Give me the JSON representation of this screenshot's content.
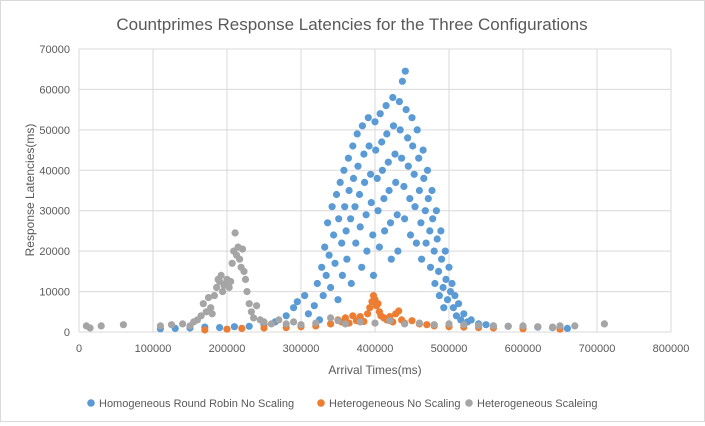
{
  "chart_data": {
    "type": "scatter",
    "title": "Countprimes Response Latencies for the Three Configurations",
    "xlabel": "Arrival Times(ms)",
    "ylabel": "Response Latencies(ms)",
    "xlim": [
      0,
      800000
    ],
    "ylim": [
      0,
      70000
    ],
    "x_ticks": [
      0,
      100000,
      200000,
      300000,
      400000,
      500000,
      600000,
      700000,
      800000
    ],
    "y_ticks": [
      0,
      10000,
      20000,
      30000,
      40000,
      50000,
      60000,
      70000
    ],
    "x_tick_labels": [
      "0",
      "100000",
      "200000",
      "300000",
      "400000",
      "500000",
      "600000",
      "700000",
      "800000"
    ],
    "y_tick_labels": [
      "0",
      "10000",
      "20000",
      "30000",
      "40000",
      "50000",
      "60000",
      "70000"
    ],
    "grid": true,
    "legend_position": "bottom",
    "series": [
      {
        "name": "Homogeneous Round Robin No Scaling",
        "color": "#5B9BD5",
        "points": [
          [
            110000,
            800
          ],
          [
            130000,
            900
          ],
          [
            150000,
            1000
          ],
          [
            170000,
            1200
          ],
          [
            190000,
            1100
          ],
          [
            210000,
            1300
          ],
          [
            230000,
            1400
          ],
          [
            250000,
            1800
          ],
          [
            265000,
            2500
          ],
          [
            280000,
            4000
          ],
          [
            290000,
            6000
          ],
          [
            295000,
            7500
          ],
          [
            305000,
            9000
          ],
          [
            310000,
            4500
          ],
          [
            318000,
            6500
          ],
          [
            322000,
            12000
          ],
          [
            325000,
            3000
          ],
          [
            328000,
            16000
          ],
          [
            330000,
            9000
          ],
          [
            332000,
            21000
          ],
          [
            334000,
            14000
          ],
          [
            336000,
            27000
          ],
          [
            338000,
            19000
          ],
          [
            340000,
            11000
          ],
          [
            342000,
            31000
          ],
          [
            344000,
            24000
          ],
          [
            346000,
            17000
          ],
          [
            348000,
            34000
          ],
          [
            350000,
            8000
          ],
          [
            351000,
            28000
          ],
          [
            353000,
            37000
          ],
          [
            355000,
            22000
          ],
          [
            356000,
            14000
          ],
          [
            358000,
            40000
          ],
          [
            359000,
            31000
          ],
          [
            361000,
            25000
          ],
          [
            362000,
            18000
          ],
          [
            364000,
            43000
          ],
          [
            365000,
            35000
          ],
          [
            367000,
            28000
          ],
          [
            368000,
            12000
          ],
          [
            370000,
            46000
          ],
          [
            371000,
            38000
          ],
          [
            373000,
            31000
          ],
          [
            374000,
            22000
          ],
          [
            376000,
            49000
          ],
          [
            377000,
            41000
          ],
          [
            379000,
            34000
          ],
          [
            380000,
            26000
          ],
          [
            382000,
            16000
          ],
          [
            383000,
            51000
          ],
          [
            385000,
            44000
          ],
          [
            386000,
            37000
          ],
          [
            388000,
            29000
          ],
          [
            389000,
            20000
          ],
          [
            391000,
            53000
          ],
          [
            392000,
            46000
          ],
          [
            394000,
            39000
          ],
          [
            395000,
            32000
          ],
          [
            397000,
            24000
          ],
          [
            398000,
            14000
          ],
          [
            400000,
            52000
          ],
          [
            401000,
            45000
          ],
          [
            403000,
            38000
          ],
          [
            404000,
            30000
          ],
          [
            406000,
            21000
          ],
          [
            407000,
            54000
          ],
          [
            409000,
            47000
          ],
          [
            410000,
            40000
          ],
          [
            412000,
            33000
          ],
          [
            413000,
            25000
          ],
          [
            415000,
            56000
          ],
          [
            416000,
            49000
          ],
          [
            418000,
            42000
          ],
          [
            419000,
            35000
          ],
          [
            421000,
            27000
          ],
          [
            422000,
            18000
          ],
          [
            424000,
            58000
          ],
          [
            425000,
            51000
          ],
          [
            427000,
            44000
          ],
          [
            428000,
            37000
          ],
          [
            430000,
            29000
          ],
          [
            431000,
            20000
          ],
          [
            433000,
            57000
          ],
          [
            434000,
            50000
          ],
          [
            436000,
            43000
          ],
          [
            437000,
            62000
          ],
          [
            439000,
            36000
          ],
          [
            440000,
            28000
          ],
          [
            441000,
            64500
          ],
          [
            442000,
            55000
          ],
          [
            444000,
            48000
          ],
          [
            445000,
            41000
          ],
          [
            447000,
            33000
          ],
          [
            448000,
            24000
          ],
          [
            450000,
            53000
          ],
          [
            451000,
            46000
          ],
          [
            453000,
            39000
          ],
          [
            454000,
            31000
          ],
          [
            456000,
            22000
          ],
          [
            457000,
            50000
          ],
          [
            459000,
            43000
          ],
          [
            460000,
            35000
          ],
          [
            462000,
            27000
          ],
          [
            463000,
            18000
          ],
          [
            465000,
            45000
          ],
          [
            466000,
            38000
          ],
          [
            468000,
            30000
          ],
          [
            469000,
            22000
          ],
          [
            471000,
            40000
          ],
          [
            472000,
            33000
          ],
          [
            474000,
            25000
          ],
          [
            475000,
            16000
          ],
          [
            477000,
            35000
          ],
          [
            478000,
            28000
          ],
          [
            480000,
            20000
          ],
          [
            481000,
            12000
          ],
          [
            483000,
            30000
          ],
          [
            484000,
            23000
          ],
          [
            486000,
            15000
          ],
          [
            487000,
            9000
          ],
          [
            489000,
            25000
          ],
          [
            490000,
            18000
          ],
          [
            492000,
            11000
          ],
          [
            493000,
            6000
          ],
          [
            495000,
            20000
          ],
          [
            496000,
            13000
          ],
          [
            498000,
            8000
          ],
          [
            500000,
            16000
          ],
          [
            502000,
            10000
          ],
          [
            504000,
            12000
          ],
          [
            506000,
            6000
          ],
          [
            508000,
            9000
          ],
          [
            510000,
            4000
          ],
          [
            513000,
            7000
          ],
          [
            516000,
            3000
          ],
          [
            520000,
            4500
          ],
          [
            525000,
            2500
          ],
          [
            530000,
            3000
          ],
          [
            540000,
            2000
          ],
          [
            550000,
            1800
          ],
          [
            560000,
            1500
          ],
          [
            580000,
            1400
          ],
          [
            600000,
            1300
          ],
          [
            620000,
            1200
          ],
          [
            640000,
            1100
          ],
          [
            650000,
            1000
          ],
          [
            660000,
            900
          ]
        ]
      },
      {
        "name": "Heterogeneous No Scaling",
        "color": "#ED7D31",
        "points": [
          [
            170000,
            500
          ],
          [
            200000,
            700
          ],
          [
            220000,
            900
          ],
          [
            250000,
            1000
          ],
          [
            280000,
            1100
          ],
          [
            300000,
            1300
          ],
          [
            320000,
            1500
          ],
          [
            340000,
            2000
          ],
          [
            350000,
            3000
          ],
          [
            355000,
            2500
          ],
          [
            360000,
            3500
          ],
          [
            365000,
            2200
          ],
          [
            370000,
            4000
          ],
          [
            375000,
            2800
          ],
          [
            380000,
            3800
          ],
          [
            385000,
            2600
          ],
          [
            390000,
            4500
          ],
          [
            393000,
            6000
          ],
          [
            396000,
            7500
          ],
          [
            398000,
            9000
          ],
          [
            400000,
            8000
          ],
          [
            402000,
            6500
          ],
          [
            404000,
            7000
          ],
          [
            406000,
            5000
          ],
          [
            408000,
            4000
          ],
          [
            412000,
            3500
          ],
          [
            416000,
            3000
          ],
          [
            420000,
            3800
          ],
          [
            424000,
            2500
          ],
          [
            428000,
            4500
          ],
          [
            432000,
            5200
          ],
          [
            436000,
            3000
          ],
          [
            440000,
            2200
          ],
          [
            450000,
            2800
          ],
          [
            460000,
            2000
          ],
          [
            470000,
            1800
          ],
          [
            480000,
            1500
          ],
          [
            500000,
            1300
          ],
          [
            520000,
            1200
          ],
          [
            540000,
            1100
          ],
          [
            560000,
            1000
          ],
          [
            600000,
            800
          ],
          [
            650000,
            700
          ]
        ]
      },
      {
        "name": "Heterogeneous Scaleing",
        "color": "#A5A5A5",
        "points": [
          [
            10000,
            1500
          ],
          [
            15000,
            1000
          ],
          [
            30000,
            1500
          ],
          [
            60000,
            1800
          ],
          [
            110000,
            1500
          ],
          [
            125000,
            1800
          ],
          [
            140000,
            2000
          ],
          [
            150000,
            1500
          ],
          [
            155000,
            2500
          ],
          [
            160000,
            3000
          ],
          [
            165000,
            4000
          ],
          [
            168000,
            7000
          ],
          [
            172000,
            5000
          ],
          [
            175000,
            8500
          ],
          [
            178000,
            6000
          ],
          [
            180000,
            4500
          ],
          [
            183000,
            9000
          ],
          [
            186000,
            11000
          ],
          [
            188000,
            13000
          ],
          [
            190000,
            12500
          ],
          [
            192000,
            14000
          ],
          [
            194000,
            10000
          ],
          [
            196000,
            11500
          ],
          [
            198000,
            12000
          ],
          [
            200000,
            13000
          ],
          [
            203000,
            11000
          ],
          [
            205000,
            12500
          ],
          [
            207000,
            17000
          ],
          [
            209000,
            20000
          ],
          [
            211000,
            24500
          ],
          [
            213000,
            19000
          ],
          [
            215000,
            21000
          ],
          [
            217000,
            18000
          ],
          [
            219000,
            16000
          ],
          [
            221000,
            20500
          ],
          [
            223000,
            15000
          ],
          [
            225000,
            13000
          ],
          [
            227000,
            10000
          ],
          [
            230000,
            7000
          ],
          [
            233000,
            5000
          ],
          [
            236000,
            3500
          ],
          [
            240000,
            6500
          ],
          [
            245000,
            3000
          ],
          [
            250000,
            2500
          ],
          [
            260000,
            2000
          ],
          [
            270000,
            3000
          ],
          [
            280000,
            2000
          ],
          [
            290000,
            2500
          ],
          [
            300000,
            1800
          ],
          [
            320000,
            2200
          ],
          [
            340000,
            3500
          ],
          [
            350000,
            2800
          ],
          [
            360000,
            2000
          ],
          [
            380000,
            2500
          ],
          [
            400000,
            2200
          ],
          [
            420000,
            2800
          ],
          [
            440000,
            2000
          ],
          [
            460000,
            2200
          ],
          [
            480000,
            1800
          ],
          [
            500000,
            2000
          ],
          [
            520000,
            1800
          ],
          [
            540000,
            1600
          ],
          [
            560000,
            1500
          ],
          [
            580000,
            1400
          ],
          [
            600000,
            1500
          ],
          [
            620000,
            1300
          ],
          [
            640000,
            1200
          ],
          [
            650000,
            1500
          ],
          [
            670000,
            1500
          ],
          [
            710000,
            2000
          ]
        ]
      }
    ]
  }
}
